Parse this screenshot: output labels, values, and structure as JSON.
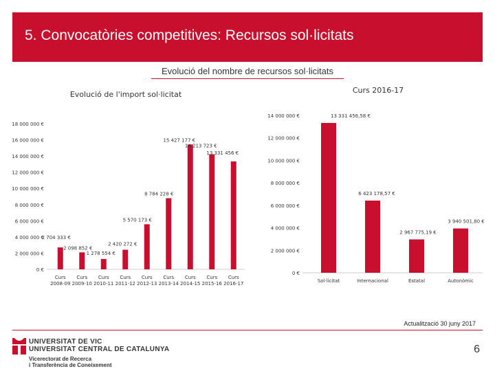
{
  "slide": {
    "title": "5. Convocatòries competitives: Recursos sol·licitats",
    "subtitle": "Evolució del nombre de recursos sol·licitats",
    "update_note": "Actualització 30 juny 2017",
    "page_number": "6"
  },
  "footer": {
    "university_line1": "UNIVERSITAT DE VIC",
    "university_line2": "UNIVERSITAT CENTRAL DE CATALUNYA",
    "dept_line1": "Vicerectorat de Recerca",
    "dept_line2": "i Transferència de Coneixement"
  },
  "colors": {
    "accent": "#c8102e",
    "bar": "#c8102e",
    "text": "#333333"
  },
  "chart_data": [
    {
      "type": "bar",
      "title": "Evolució de l'import sol·licitat",
      "categories": [
        [
          "Curs",
          "2008-09"
        ],
        [
          "Curs",
          "2009-10"
        ],
        [
          "Curs",
          "2010-11"
        ],
        [
          "Curs",
          "2011-12"
        ],
        [
          "Curs",
          "2012-13"
        ],
        [
          "Curs",
          "2013-14"
        ],
        [
          "Curs",
          "2014-15"
        ],
        [
          "Curs",
          "2015-16"
        ],
        [
          "Curs",
          "2016-17"
        ]
      ],
      "values": [
        2704333,
        2098852,
        1278554,
        2420272,
        5570173,
        8784228,
        15427177,
        14213723,
        13331456
      ],
      "data_labels": [
        "2 704 333 €",
        "2 098 852 €",
        "1 278 554 €",
        "2 420 272 €",
        "5 570 173 €",
        "8 784 228 €",
        "15 427 177 €",
        "14 213 723 €",
        "13 331 456 €"
      ],
      "ylim": [
        0,
        18000000
      ],
      "yticks": [
        0,
        2000000,
        4000000,
        6000000,
        8000000,
        10000000,
        12000000,
        14000000,
        16000000,
        18000000
      ],
      "ytick_labels": [
        "0 €",
        "2 000 000 €",
        "4 000 000 €",
        "6 000 000 €",
        "8 000 000 €",
        "10 000 000 €",
        "12 000 000 €",
        "14 000 000 €",
        "16 000 000 €",
        "18 000 000 €"
      ]
    },
    {
      "type": "bar",
      "title": "Curs 2016-17",
      "categories": [
        "Sol·licitat",
        "Internacional",
        "Estatal",
        "Autonòmic"
      ],
      "values": [
        13331456.58,
        6423178.57,
        2967775.19,
        3940501.8
      ],
      "data_labels": [
        "13 331 456,58 €",
        "6 423 178,57 €",
        "2 967 775,19 €",
        "3 940 501,80 €"
      ],
      "ylim": [
        0,
        14000000
      ],
      "yticks": [
        0,
        2000000,
        4000000,
        6000000,
        8000000,
        10000000,
        12000000,
        14000000
      ],
      "ytick_labels": [
        "0 €",
        "2 000 000 €",
        "4 000 000 €",
        "6 000 000 €",
        "8 000 000 €",
        "10 000 000 €",
        "12 000 000 €",
        "14 000 000 €"
      ]
    }
  ]
}
